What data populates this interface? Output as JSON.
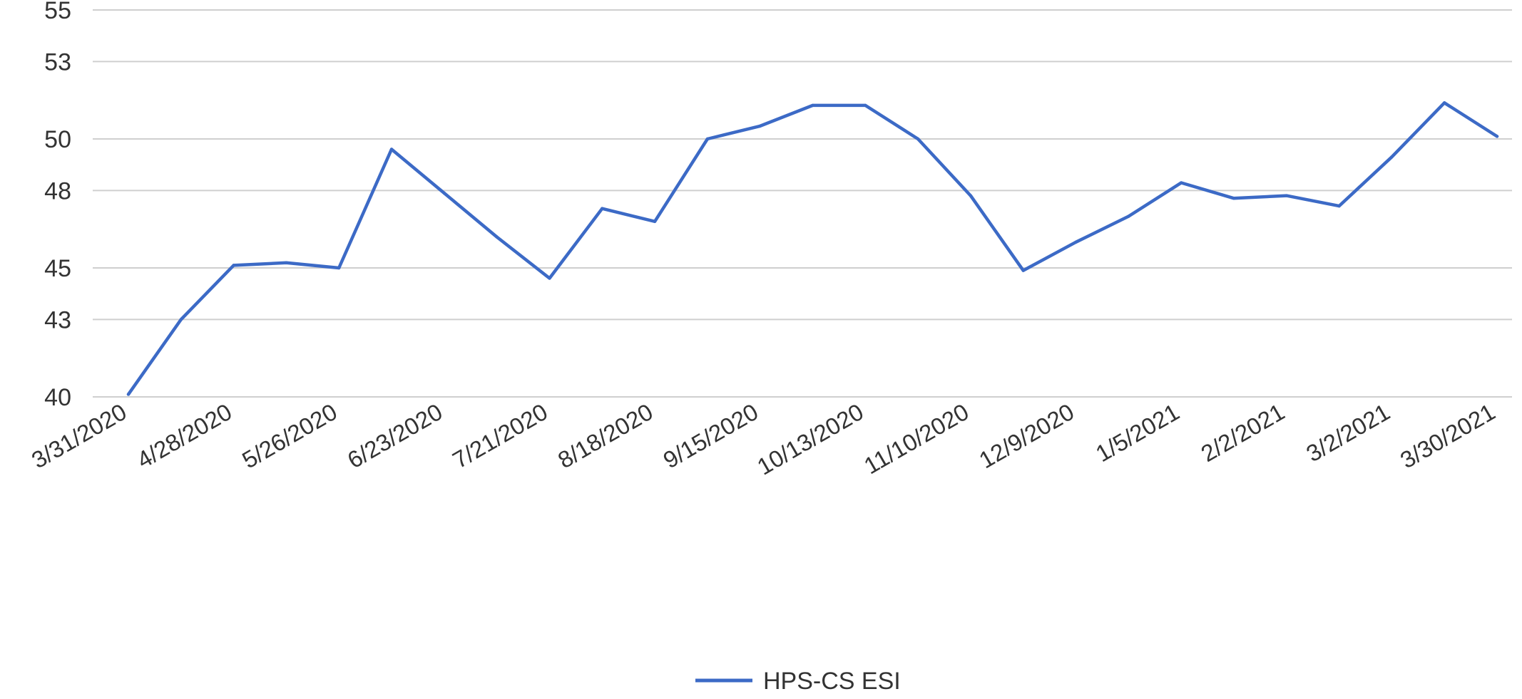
{
  "chart_data": {
    "type": "line",
    "title": "",
    "xlabel": "",
    "ylabel": "",
    "grid": true,
    "legend_position": "bottom",
    "ylim": [
      40,
      55
    ],
    "y_ticks": [
      40,
      43,
      45,
      48,
      50,
      53,
      55
    ],
    "x_tick_labels": [
      "3/31/2020",
      "4/28/2020",
      "5/26/2020",
      "6/23/2020",
      "7/21/2020",
      "8/18/2020",
      "9/15/2020",
      "10/13/2020",
      "11/10/2020",
      "12/9/2020",
      "1/5/2021",
      "2/2/2021",
      "3/2/2021",
      "3/30/2021"
    ],
    "x": [
      "3/31/2020",
      "4/14/2020",
      "4/28/2020",
      "5/12/2020",
      "5/26/2020",
      "6/9/2020",
      "6/23/2020",
      "7/7/2020",
      "7/21/2020",
      "8/4/2020",
      "8/18/2020",
      "9/1/2020",
      "9/15/2020",
      "9/29/2020",
      "10/13/2020",
      "10/27/2020",
      "11/10/2020",
      "11/24/2020",
      "12/9/2020",
      "12/22/2020",
      "1/5/2021",
      "1/19/2021",
      "2/2/2021",
      "2/16/2021",
      "3/2/2021",
      "3/16/2021",
      "3/30/2021"
    ],
    "series": [
      {
        "name": "HPS-CS ESI",
        "color": "#3c6ac6",
        "values": [
          40.1,
          43.0,
          45.1,
          45.2,
          45.0,
          49.6,
          47.9,
          46.2,
          44.6,
          47.3,
          46.8,
          50.0,
          50.5,
          51.3,
          51.3,
          50.0,
          47.8,
          44.9,
          46.0,
          47.0,
          48.3,
          47.7,
          47.8,
          47.4,
          49.3,
          51.4,
          50.1
        ]
      }
    ]
  },
  "styles": {
    "line_color": "#3c6ac6",
    "grid_color": "#cfcfcf",
    "text_color": "#333333"
  }
}
